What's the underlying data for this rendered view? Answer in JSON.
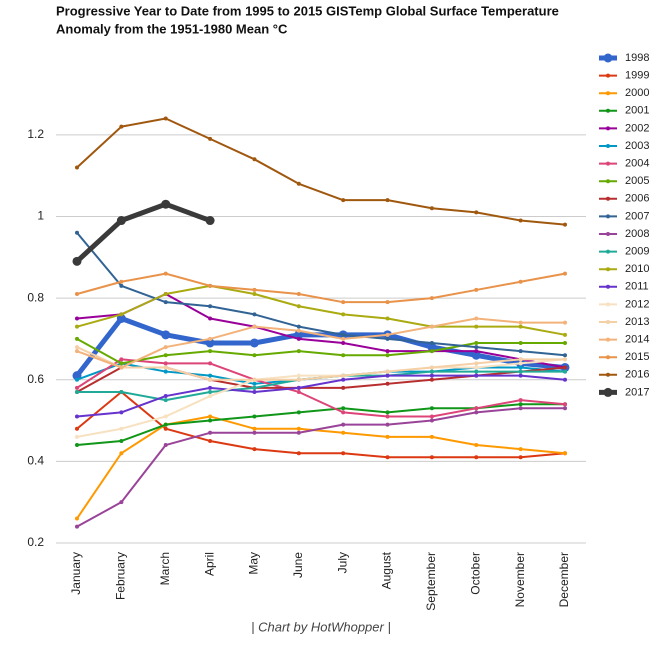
{
  "chart_data": {
    "type": "line",
    "title": [
      "Progressive Year to Date from 1995 to 2015 GISTemp Global Surface Temperature",
      "Anomaly from the 1951-1980 Mean °C"
    ],
    "footer": "| Chart by HotWhopper |",
    "categories": [
      "January",
      "February",
      "March",
      "April",
      "May",
      "June",
      "July",
      "August",
      "September",
      "October",
      "November",
      "December"
    ],
    "ylim": [
      0.2,
      1.3
    ],
    "yticks": [
      0.2,
      0.4,
      0.6,
      0.8,
      1,
      1.2
    ],
    "grid": true,
    "legend": "right",
    "series": [
      {
        "name": "1998",
        "color": "#3366cc",
        "line_width": 5,
        "values": [
          0.61,
          0.75,
          0.71,
          0.69,
          0.69,
          0.71,
          0.71,
          0.71,
          0.68,
          0.66,
          0.64,
          0.63
        ]
      },
      {
        "name": "1999",
        "color": "#dc3912",
        "line_width": 2,
        "values": [
          0.48,
          0.57,
          0.48,
          0.45,
          0.43,
          0.42,
          0.42,
          0.41,
          0.41,
          0.41,
          0.41,
          0.42
        ]
      },
      {
        "name": "2000",
        "color": "#ff9900",
        "line_width": 2,
        "values": [
          0.26,
          0.42,
          0.49,
          0.51,
          0.48,
          0.48,
          0.47,
          0.46,
          0.46,
          0.44,
          0.43,
          0.42
        ]
      },
      {
        "name": "2001",
        "color": "#109618",
        "line_width": 2,
        "values": [
          0.44,
          0.45,
          0.49,
          0.5,
          0.51,
          0.52,
          0.53,
          0.52,
          0.53,
          0.53,
          0.54,
          0.54
        ]
      },
      {
        "name": "2002",
        "color": "#990099",
        "line_width": 2,
        "values": [
          0.75,
          0.76,
          0.81,
          0.75,
          0.73,
          0.7,
          0.69,
          0.67,
          0.67,
          0.67,
          0.65,
          0.63
        ]
      },
      {
        "name": "2003",
        "color": "#0099c6",
        "line_width": 2,
        "values": [
          0.6,
          0.64,
          0.62,
          0.61,
          0.59,
          0.6,
          0.61,
          0.62,
          0.62,
          0.63,
          0.63,
          0.62
        ]
      },
      {
        "name": "2004",
        "color": "#dd4477",
        "line_width": 2,
        "values": [
          0.58,
          0.65,
          0.64,
          0.64,
          0.6,
          0.57,
          0.52,
          0.51,
          0.51,
          0.53,
          0.55,
          0.54
        ]
      },
      {
        "name": "2005",
        "color": "#66aa00",
        "line_width": 2,
        "values": [
          0.7,
          0.64,
          0.66,
          0.67,
          0.66,
          0.67,
          0.66,
          0.66,
          0.67,
          0.69,
          0.69,
          0.69
        ]
      },
      {
        "name": "2006",
        "color": "#b82e2e",
        "line_width": 2,
        "values": [
          0.57,
          0.63,
          0.63,
          0.6,
          0.58,
          0.58,
          0.58,
          0.59,
          0.6,
          0.61,
          0.62,
          0.63
        ]
      },
      {
        "name": "2007",
        "color": "#316395",
        "line_width": 2,
        "values": [
          0.96,
          0.83,
          0.79,
          0.78,
          0.76,
          0.73,
          0.71,
          0.7,
          0.69,
          0.68,
          0.67,
          0.66
        ]
      },
      {
        "name": "2008",
        "color": "#994499",
        "line_width": 2,
        "values": [
          0.24,
          0.3,
          0.44,
          0.47,
          0.47,
          0.47,
          0.49,
          0.49,
          0.5,
          0.52,
          0.53,
          0.53
        ]
      },
      {
        "name": "2009",
        "color": "#22aa99",
        "line_width": 2,
        "values": [
          0.57,
          0.57,
          0.55,
          0.57,
          0.58,
          0.6,
          0.61,
          0.61,
          0.62,
          0.62,
          0.62,
          0.62
        ]
      },
      {
        "name": "2010",
        "color": "#aaaa11",
        "line_width": 2,
        "values": [
          0.73,
          0.76,
          0.81,
          0.83,
          0.81,
          0.78,
          0.76,
          0.75,
          0.73,
          0.73,
          0.73,
          0.71
        ]
      },
      {
        "name": "2011",
        "color": "#6633cc",
        "line_width": 2,
        "values": [
          0.51,
          0.52,
          0.56,
          0.58,
          0.57,
          0.58,
          0.6,
          0.61,
          0.61,
          0.61,
          0.61,
          0.6
        ]
      },
      {
        "name": "2012",
        "color": "#f7e1c0",
        "line_width": 2,
        "values": [
          0.46,
          0.48,
          0.51,
          0.56,
          0.6,
          0.61,
          0.61,
          0.62,
          0.63,
          0.63,
          0.64,
          0.65
        ]
      },
      {
        "name": "2013",
        "color": "#f5cfa5",
        "line_width": 2,
        "values": [
          0.68,
          0.63,
          0.63,
          0.6,
          0.6,
          0.6,
          0.61,
          0.62,
          0.63,
          0.64,
          0.65,
          0.65
        ]
      },
      {
        "name": "2014",
        "color": "#f2b27a",
        "line_width": 2,
        "values": [
          0.67,
          0.63,
          0.68,
          0.7,
          0.73,
          0.72,
          0.7,
          0.71,
          0.73,
          0.75,
          0.74,
          0.74
        ]
      },
      {
        "name": "2015",
        "color": "#e8924a",
        "line_width": 2,
        "values": [
          0.81,
          0.84,
          0.86,
          0.83,
          0.82,
          0.81,
          0.79,
          0.79,
          0.8,
          0.82,
          0.84,
          0.86
        ]
      },
      {
        "name": "2016",
        "color": "#a0580f",
        "line_width": 2,
        "values": [
          1.12,
          1.22,
          1.24,
          1.19,
          1.14,
          1.08,
          1.04,
          1.04,
          1.02,
          1.01,
          0.99,
          0.98
        ]
      },
      {
        "name": "2017",
        "color": "#3a3a3a",
        "line_width": 5,
        "values": [
          0.89,
          0.99,
          1.03,
          0.99,
          null,
          null,
          null,
          null,
          null,
          null,
          null,
          null
        ]
      }
    ]
  }
}
